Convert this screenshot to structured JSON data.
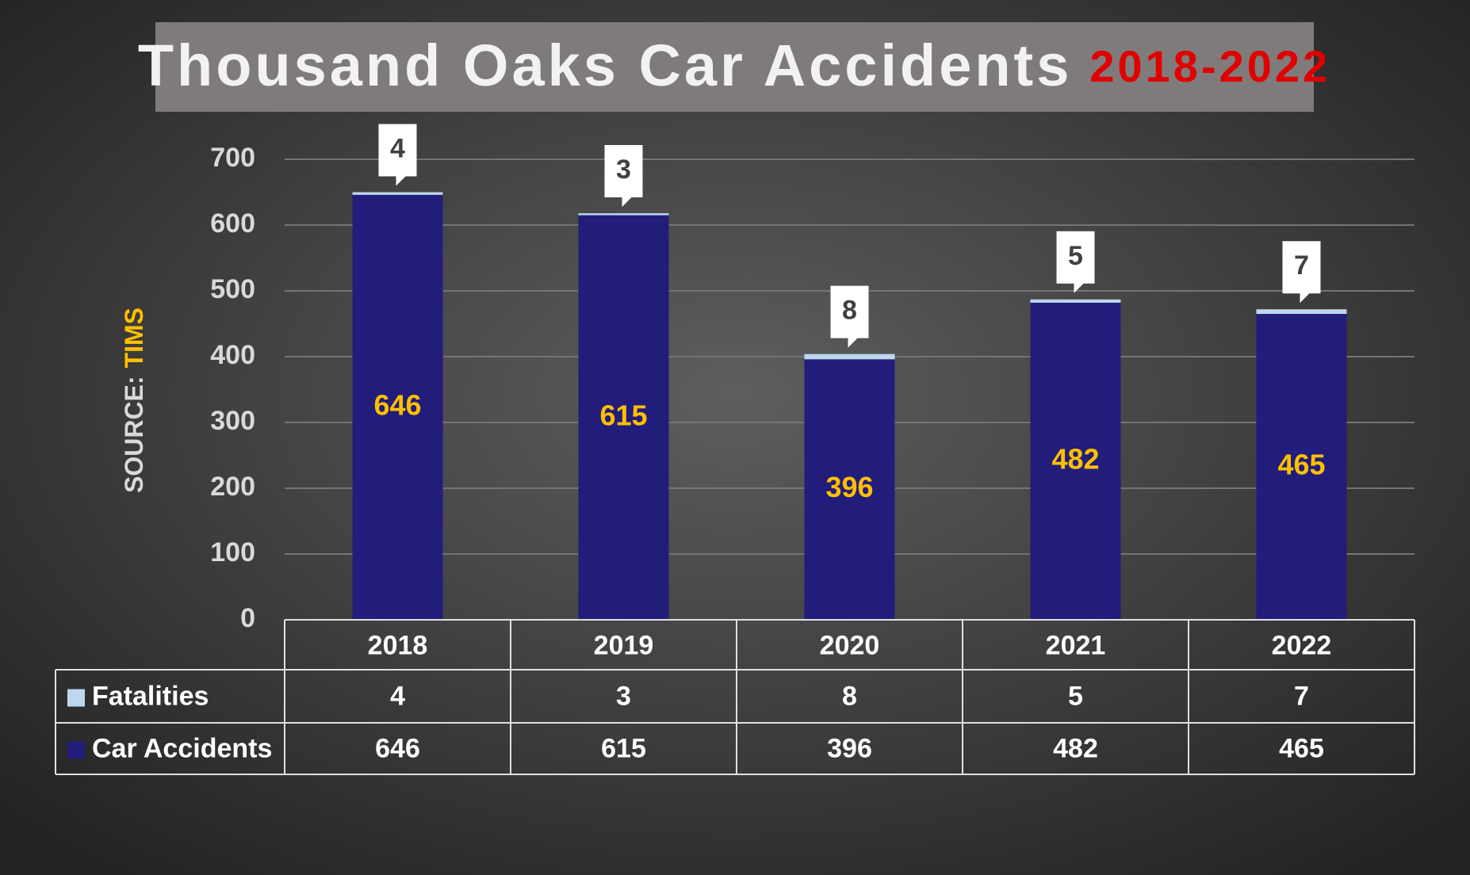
{
  "chart_data": {
    "type": "stacked-bar",
    "title": "Thousand Oaks Car Accidents",
    "title_highlight": "2018-2022",
    "source_label": "SOURCE:",
    "source": "TIMS",
    "categories": [
      "2018",
      "2019",
      "2020",
      "2021",
      "2022"
    ],
    "series": [
      {
        "name": "Fatalities",
        "color": "#bdd7ee",
        "values": [
          4,
          3,
          8,
          5,
          7
        ]
      },
      {
        "name": "Car Accidents",
        "color": "#221c7a",
        "values": [
          646,
          615,
          396,
          482,
          465
        ]
      }
    ],
    "ylim": [
      0,
      700
    ],
    "yticks": [
      0,
      100,
      200,
      300,
      400,
      500,
      600,
      700
    ],
    "grid": true,
    "data_table": true
  }
}
